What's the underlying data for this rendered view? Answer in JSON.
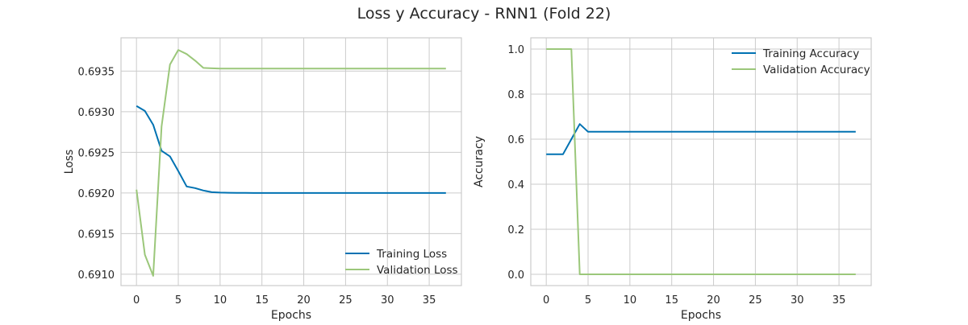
{
  "figure_title": "Loss y Accuracy - RNN1 (Fold 22)",
  "colors": {
    "training": "#0072B2",
    "validation": "#9BC77A",
    "grid": "#cbcbcb",
    "spine": "#cbcbcb"
  },
  "chart_data": [
    {
      "type": "line",
      "xlabel": "Epochs",
      "ylabel": "Loss",
      "xlim": [
        -1.85,
        38.85
      ],
      "ylim": [
        0.69086,
        0.69391
      ],
      "xticks": [
        0,
        5,
        10,
        15,
        20,
        25,
        30,
        35
      ],
      "yticks": [
        0.691,
        0.6915,
        0.692,
        0.6925,
        0.693,
        0.6935
      ],
      "ytick_labels": [
        "0.6910",
        "0.6915",
        "0.6920",
        "0.6925",
        "0.6930",
        "0.6935"
      ],
      "grid": true,
      "legend_position": "lower-right",
      "series": [
        {
          "name": "Training Loss",
          "color_key": "training",
          "x": [
            0,
            1,
            2,
            3,
            4,
            5,
            6,
            7,
            8,
            9,
            10,
            11,
            12,
            13,
            14,
            15,
            16,
            17,
            18,
            19,
            20,
            21,
            22,
            23,
            24,
            25,
            26,
            27,
            28,
            29,
            30,
            31,
            32,
            33,
            34,
            35,
            36,
            37
          ],
          "y": [
            0.69307,
            0.69301,
            0.69284,
            0.69252,
            0.69245,
            0.69227,
            0.69208,
            0.69206,
            0.69203,
            0.69201,
            0.692005,
            0.692003,
            0.692001,
            0.692001,
            0.692,
            0.692,
            0.692,
            0.692,
            0.692,
            0.692,
            0.692,
            0.692,
            0.692,
            0.692,
            0.692,
            0.692,
            0.692,
            0.692,
            0.692,
            0.692,
            0.692,
            0.692,
            0.692,
            0.692,
            0.692,
            0.692,
            0.692,
            0.692
          ]
        },
        {
          "name": "Validation Loss",
          "color_key": "validation",
          "x": [
            0,
            1,
            2,
            3,
            4,
            5,
            6,
            7,
            8,
            9,
            10,
            11,
            12,
            13,
            14,
            15,
            16,
            17,
            18,
            19,
            20,
            21,
            22,
            23,
            24,
            25,
            26,
            27,
            28,
            29,
            30,
            31,
            32,
            33,
            34,
            35,
            36,
            37
          ],
          "y": [
            0.69204,
            0.69124,
            0.69098,
            0.69282,
            0.69358,
            0.69376,
            0.69371,
            0.69363,
            0.69354,
            0.693535,
            0.693532,
            0.693532,
            0.693532,
            0.693532,
            0.693532,
            0.693532,
            0.693532,
            0.693532,
            0.693532,
            0.693532,
            0.693532,
            0.693532,
            0.693532,
            0.693532,
            0.693532,
            0.693532,
            0.693532,
            0.693532,
            0.693532,
            0.693532,
            0.693532,
            0.693532,
            0.693532,
            0.693532,
            0.693532,
            0.693532,
            0.693532,
            0.693532
          ]
        }
      ]
    },
    {
      "type": "line",
      "xlabel": "Epochs",
      "ylabel": "Accuracy",
      "xlim": [
        -1.85,
        38.85
      ],
      "ylim": [
        -0.05,
        1.05
      ],
      "xticks": [
        0,
        5,
        10,
        15,
        20,
        25,
        30,
        35
      ],
      "yticks": [
        0,
        0.2,
        0.4,
        0.6,
        0.8,
        1.0
      ],
      "ytick_labels": [
        "0.0",
        "0.2",
        "0.4",
        "0.6",
        "0.8",
        "1.0"
      ],
      "grid": true,
      "legend_position": "upper-right",
      "series": [
        {
          "name": "Training Accuracy",
          "color_key": "training",
          "x": [
            0,
            1,
            2,
            3,
            4,
            5,
            6,
            7,
            8,
            9,
            10,
            11,
            12,
            13,
            14,
            15,
            16,
            17,
            18,
            19,
            20,
            21,
            22,
            23,
            24,
            25,
            26,
            27,
            28,
            29,
            30,
            31,
            32,
            33,
            34,
            35,
            36,
            37
          ],
          "y": [
            0.533,
            0.533,
            0.533,
            0.6,
            0.667,
            0.633,
            0.633,
            0.633,
            0.633,
            0.633,
            0.633,
            0.633,
            0.633,
            0.633,
            0.633,
            0.633,
            0.633,
            0.633,
            0.633,
            0.633,
            0.633,
            0.633,
            0.633,
            0.633,
            0.633,
            0.633,
            0.633,
            0.633,
            0.633,
            0.633,
            0.633,
            0.633,
            0.633,
            0.633,
            0.633,
            0.633,
            0.633,
            0.633
          ]
        },
        {
          "name": "Validation Accuracy",
          "color_key": "validation",
          "x": [
            0,
            1,
            2,
            3,
            4,
            5,
            6,
            7,
            8,
            9,
            10,
            11,
            12,
            13,
            14,
            15,
            16,
            17,
            18,
            19,
            20,
            21,
            22,
            23,
            24,
            25,
            26,
            27,
            28,
            29,
            30,
            31,
            32,
            33,
            34,
            35,
            36,
            37
          ],
          "y": [
            1,
            1,
            1,
            1,
            0,
            0,
            0,
            0,
            0,
            0,
            0,
            0,
            0,
            0,
            0,
            0,
            0,
            0,
            0,
            0,
            0,
            0,
            0,
            0,
            0,
            0,
            0,
            0,
            0,
            0,
            0,
            0,
            0,
            0,
            0,
            0,
            0,
            0
          ]
        }
      ]
    }
  ]
}
